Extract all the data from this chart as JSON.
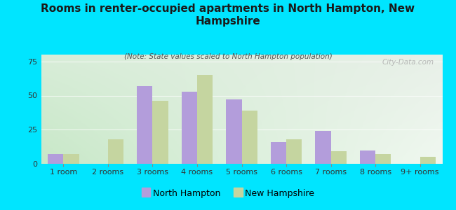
{
  "title": "Rooms in renter-occupied apartments in North Hampton, New\nHampshire",
  "subtitle": "(Note: State values scaled to North Hampton population)",
  "categories": [
    "1 room",
    "2 rooms",
    "3 rooms",
    "4 rooms",
    "5 rooms",
    "6 rooms",
    "7 rooms",
    "8 rooms",
    "9+ rooms"
  ],
  "north_hampton": [
    7,
    0,
    57,
    53,
    47,
    16,
    24,
    10,
    0
  ],
  "new_hampshire": [
    7,
    18,
    46,
    65,
    39,
    18,
    9,
    7,
    5
  ],
  "nh_color": "#b39ddb",
  "state_color": "#c5d5a0",
  "background_outer": "#00e5ff",
  "background_inner_topleft": "#d8edd8",
  "background_inner_topright": "#e8f0e8",
  "background_inner_bottomleft": "#c8e8c8",
  "background_inner_bottomright": "#f0f8f0",
  "ylim": [
    0,
    80
  ],
  "yticks": [
    0,
    25,
    50,
    75
  ],
  "watermark": "City-Data.com",
  "legend_nh": "North Hampton",
  "legend_state": "New Hampshire",
  "bar_width": 0.35,
  "title_fontsize": 11,
  "subtitle_fontsize": 7.5,
  "tick_fontsize": 8,
  "legend_fontsize": 9
}
